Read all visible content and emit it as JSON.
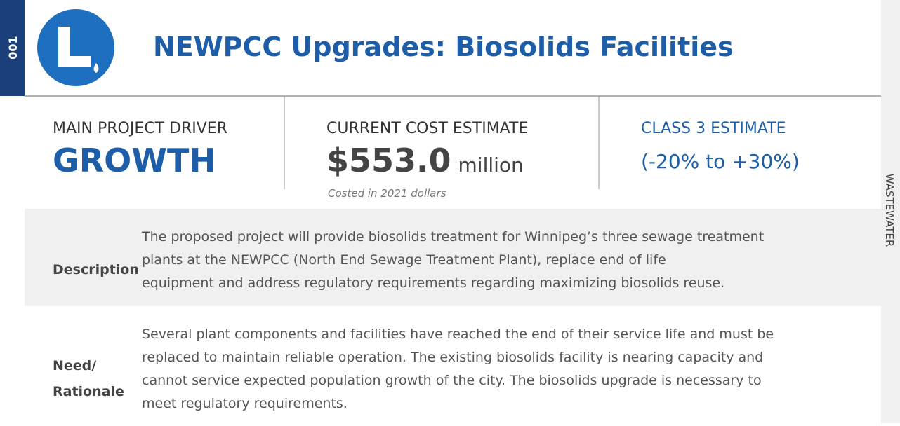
{
  "header": {
    "number": "001",
    "title": "NEWPCC Upgrades: Biosolids Facilities",
    "side_label": "WASTEWATER"
  },
  "summary": {
    "driver": {
      "label": "MAIN PROJECT DRIVER",
      "value": "GROWTH"
    },
    "cost": {
      "label": "CURRENT COST ESTIMATE",
      "amount": "$553.0",
      "unit": "million",
      "note": "Costed in 2021 dollars"
    },
    "class": {
      "label": "CLASS 3 ESTIMATE",
      "range": "(-20% to +30%)"
    }
  },
  "rows": [
    {
      "label": [
        "Description"
      ],
      "lines": [
        "The proposed project will provide biosolids treatment for Winnipeg’s three sewage treatment",
        "plants at the NEWPCC (North End Sewage Treatment Plant), replace end of life",
        "equipment and address regulatory requirements regarding maximizing biosolids reuse."
      ]
    },
    {
      "label": [
        "Need/",
        "Rationale"
      ],
      "lines": [
        "Several plant components and facilities have reached the end of their service life and must be",
        "replaced to maintain reliable operation. The existing biosolids facility is nearing capacity and",
        "cannot service expected population growth of the city. The biosolids upgrade is necessary to",
        "meet regulatory requirements."
      ]
    }
  ]
}
